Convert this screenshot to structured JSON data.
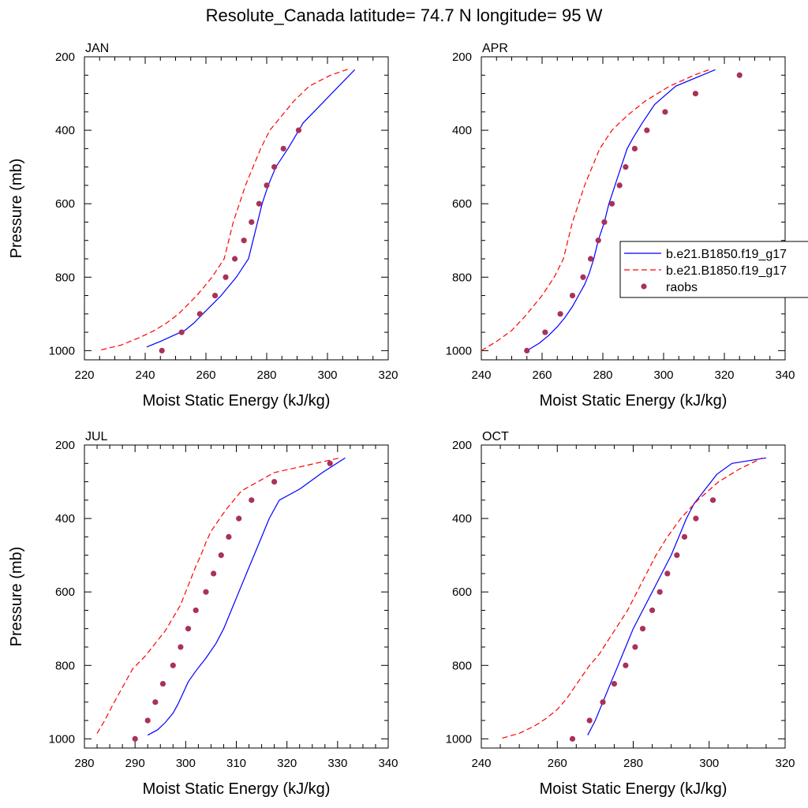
{
  "figure_title": "Resolute_Canada  latitude= 74.7 N longitude= 95 W",
  "colors": {
    "model1": "#0000ff",
    "model2": "#ff0000",
    "raobs": "#a8325a"
  },
  "legend": {
    "location": "right of APR panel (clipped at image edge)",
    "entries": [
      {
        "label": "b.e21.B1850.f19_g17",
        "style": "solid",
        "color": "#0000ff"
      },
      {
        "label": "b.e21.B1850.f19_g17",
        "style": "dashed",
        "color": "#ff0000"
      },
      {
        "label": "raobs",
        "style": "marker",
        "color": "#a8325a"
      }
    ]
  },
  "chart_data": [
    {
      "type": "line",
      "panel_label": "JAN",
      "xlabel": "Moist Static Energy (kJ/kg)",
      "ylabel": "Pressure (mb)",
      "xlim": [
        220,
        320
      ],
      "ylim": [
        1025,
        200
      ],
      "xticks": [
        220,
        240,
        260,
        280,
        300,
        320
      ],
      "yticks": [
        200,
        400,
        600,
        800,
        1000
      ],
      "series": [
        {
          "name": "b.e21.B1850.f19_g17",
          "style": "solid",
          "x": [
            240.5,
            245,
            249,
            253,
            256,
            259,
            262,
            265,
            267.5,
            270,
            272,
            274,
            275.5,
            277,
            278.5,
            280.5,
            283,
            287,
            292,
            299,
            309
          ],
          "y": [
            990,
            975,
            960,
            945,
            925,
            900,
            875,
            850,
            825,
            800,
            775,
            750,
            700,
            650,
            600,
            550,
            500,
            450,
            380,
            320,
            235
          ]
        },
        {
          "name": "b.e21.B1850.f19_g17",
          "style": "dashed",
          "x": [
            225.5,
            232,
            238,
            243,
            247,
            251,
            254,
            257,
            259.5,
            262,
            264,
            266,
            267.5,
            269,
            271,
            273,
            275.5,
            278,
            281,
            285,
            289,
            294,
            301,
            307
          ],
          "y": [
            998,
            985,
            965,
            945,
            925,
            900,
            875,
            850,
            825,
            800,
            775,
            750,
            700,
            650,
            600,
            550,
            500,
            450,
            400,
            360,
            320,
            280,
            250,
            233
          ]
        },
        {
          "name": "raobs",
          "style": "marker",
          "x": [
            245.5,
            252,
            258,
            263,
            266.5,
            269.5,
            272.5,
            275,
            277.5,
            280,
            282.5,
            285.5,
            290.5
          ],
          "y": [
            1000,
            950,
            900,
            850,
            800,
            750,
            700,
            650,
            600,
            550,
            500,
            450,
            400
          ]
        }
      ]
    },
    {
      "type": "line",
      "panel_label": "APR",
      "xlabel": "Moist Static Energy (kJ/kg)",
      "ylabel": "",
      "xlim": [
        240,
        340
      ],
      "ylim": [
        1025,
        200
      ],
      "xticks": [
        240,
        260,
        280,
        300,
        320,
        340
      ],
      "yticks": [
        200,
        400,
        600,
        800,
        1000
      ],
      "series": [
        {
          "name": "b.e21.B1850.f19_g17",
          "style": "solid",
          "x": [
            255,
            259,
            262,
            265,
            267.5,
            270,
            272,
            274,
            275.5,
            277,
            278.5,
            280.5,
            282,
            284,
            286,
            288,
            290,
            293,
            297,
            304,
            317
          ],
          "y": [
            1000,
            980,
            960,
            935,
            910,
            880,
            850,
            820,
            790,
            750,
            700,
            650,
            600,
            550,
            500,
            450,
            420,
            380,
            330,
            280,
            235
          ]
        },
        {
          "name": "b.e21.B1850.f19_g17",
          "style": "dashed",
          "x": [
            240,
            245,
            250,
            254,
            257,
            260,
            262,
            264,
            265.5,
            267,
            268.5,
            270,
            272,
            274,
            276.5,
            279,
            283,
            288,
            294,
            302,
            310,
            315
          ],
          "y": [
            1000,
            975,
            945,
            910,
            880,
            850,
            825,
            800,
            775,
            750,
            700,
            650,
            600,
            550,
            500,
            450,
            400,
            360,
            320,
            280,
            250,
            235
          ]
        },
        {
          "name": "raobs",
          "style": "marker",
          "x": [
            255,
            261,
            266,
            270,
            273.5,
            276,
            278.5,
            280.5,
            283,
            285.5,
            287.5,
            290.5,
            294.5,
            300.5,
            310.5,
            325
          ],
          "y": [
            1000,
            950,
            900,
            850,
            800,
            750,
            700,
            650,
            600,
            550,
            500,
            450,
            400,
            350,
            300,
            250
          ]
        }
      ]
    },
    {
      "type": "line",
      "panel_label": "JUL",
      "xlabel": "Moist Static Energy (kJ/kg)",
      "ylabel": "Pressure (mb)",
      "xlim": [
        280,
        340
      ],
      "ylim": [
        1025,
        200
      ],
      "xticks": [
        280,
        290,
        300,
        310,
        320,
        330,
        340
      ],
      "yticks": [
        200,
        400,
        600,
        800,
        1000
      ],
      "series": [
        {
          "name": "b.e21.B1850.f19_g17",
          "style": "solid",
          "x": [
            292.5,
            294.5,
            296,
            297.5,
            298.5,
            299.5,
            300.5,
            302,
            304,
            306,
            307.5,
            309,
            310.5,
            312,
            313.5,
            315,
            316.5,
            318.5,
            322.5,
            327,
            331.5
          ],
          "y": [
            990,
            975,
            955,
            930,
            905,
            875,
            845,
            815,
            780,
            740,
            700,
            650,
            600,
            550,
            500,
            450,
            400,
            350,
            320,
            275,
            235
          ]
        },
        {
          "name": "b.e21.B1850.f19_g17",
          "style": "dashed",
          "x": [
            282.5,
            284,
            285.5,
            287.5,
            289.5,
            292,
            294,
            296,
            297.5,
            299,
            300,
            301,
            302,
            303,
            304,
            305,
            306.5,
            308,
            311,
            317.5,
            324,
            330.5
          ],
          "y": [
            985,
            950,
            910,
            860,
            810,
            775,
            740,
            705,
            670,
            635,
            600,
            565,
            530,
            500,
            465,
            435,
            405,
            375,
            325,
            275,
            255,
            235
          ]
        },
        {
          "name": "raobs",
          "style": "marker",
          "x": [
            290,
            292.5,
            294,
            295.5,
            297.5,
            299,
            300.5,
            302,
            304,
            305.5,
            307,
            308.5,
            310.5,
            313,
            317.5,
            328.5
          ],
          "y": [
            1000,
            950,
            900,
            850,
            800,
            750,
            700,
            650,
            600,
            550,
            500,
            450,
            400,
            350,
            300,
            250
          ]
        }
      ]
    },
    {
      "type": "line",
      "panel_label": "OCT",
      "xlabel": "Moist Static Energy (kJ/kg)",
      "ylabel": "",
      "xlim": [
        240,
        320
      ],
      "ylim": [
        1025,
        200
      ],
      "xticks": [
        240,
        260,
        280,
        300,
        320
      ],
      "yticks": [
        200,
        400,
        600,
        800,
        1000
      ],
      "series": [
        {
          "name": "b.e21.B1850.f19_g17",
          "style": "solid",
          "x": [
            268,
            270,
            272,
            274,
            276,
            278,
            280,
            282.5,
            285,
            287.5,
            290,
            292,
            294,
            296,
            299,
            302,
            306,
            315
          ],
          "y": [
            990,
            950,
            900,
            850,
            800,
            750,
            700,
            650,
            600,
            550,
            500,
            450,
            400,
            360,
            320,
            280,
            250,
            235
          ]
        },
        {
          "name": "b.e21.B1850.f19_g17",
          "style": "dashed",
          "x": [
            245.5,
            250,
            254,
            257,
            260,
            262.5,
            264.5,
            266.5,
            268.5,
            271,
            273.5,
            276,
            278.5,
            281,
            283.5,
            286,
            289,
            292.5,
            297,
            302.5,
            308,
            314
          ],
          "y": [
            998,
            985,
            965,
            945,
            920,
            890,
            860,
            830,
            800,
            770,
            730,
            690,
            650,
            600,
            550,
            500,
            450,
            400,
            350,
            300,
            265,
            235
          ]
        },
        {
          "name": "raobs",
          "style": "marker",
          "x": [
            264,
            268.5,
            272,
            275,
            278,
            280.5,
            282.5,
            285,
            287,
            289,
            291.5,
            293.5,
            296.5,
            301
          ],
          "y": [
            1000,
            950,
            900,
            850,
            800,
            750,
            700,
            650,
            600,
            550,
            500,
            450,
            400,
            350
          ]
        }
      ]
    }
  ]
}
